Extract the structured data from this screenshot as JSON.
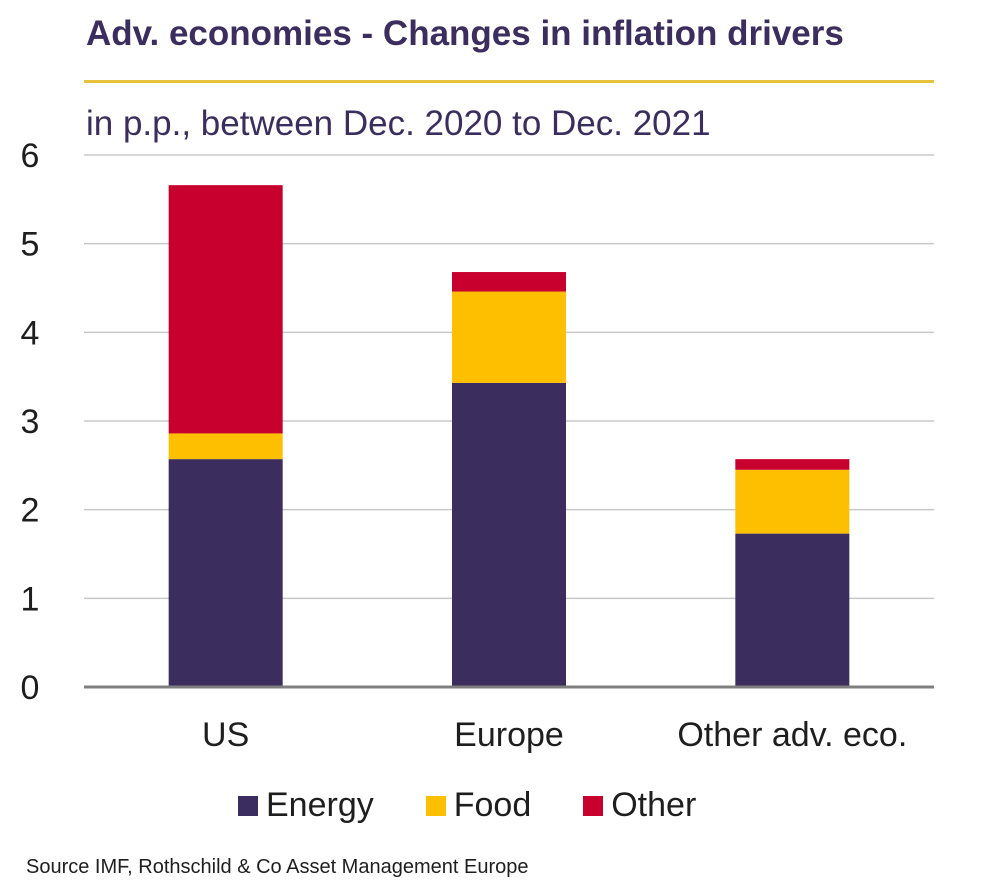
{
  "title": "Adv. economies - Changes in inflation drivers",
  "subtitle": "in p.p., between Dec. 2020 to Dec. 2021",
  "source": "Source IMF, Rothschild & Co Asset Management Europe",
  "colors": {
    "Energy": "#3b2e5f",
    "Food": "#fdbf00",
    "Other": "#c8002e"
  },
  "chart_data": {
    "type": "bar",
    "stacked": true,
    "categories": [
      "US",
      "Europe",
      "Other adv. eco."
    ],
    "series": [
      {
        "name": "Energy",
        "values": [
          2.57,
          3.43,
          1.73
        ]
      },
      {
        "name": "Food",
        "values": [
          0.29,
          1.03,
          0.72
        ]
      },
      {
        "name": "Other",
        "values": [
          2.8,
          0.22,
          0.12
        ]
      }
    ],
    "ylim": [
      0,
      6
    ],
    "yticks": [
      0,
      1,
      2,
      3,
      4,
      5,
      6
    ],
    "grid": true,
    "legend": "bottom"
  }
}
